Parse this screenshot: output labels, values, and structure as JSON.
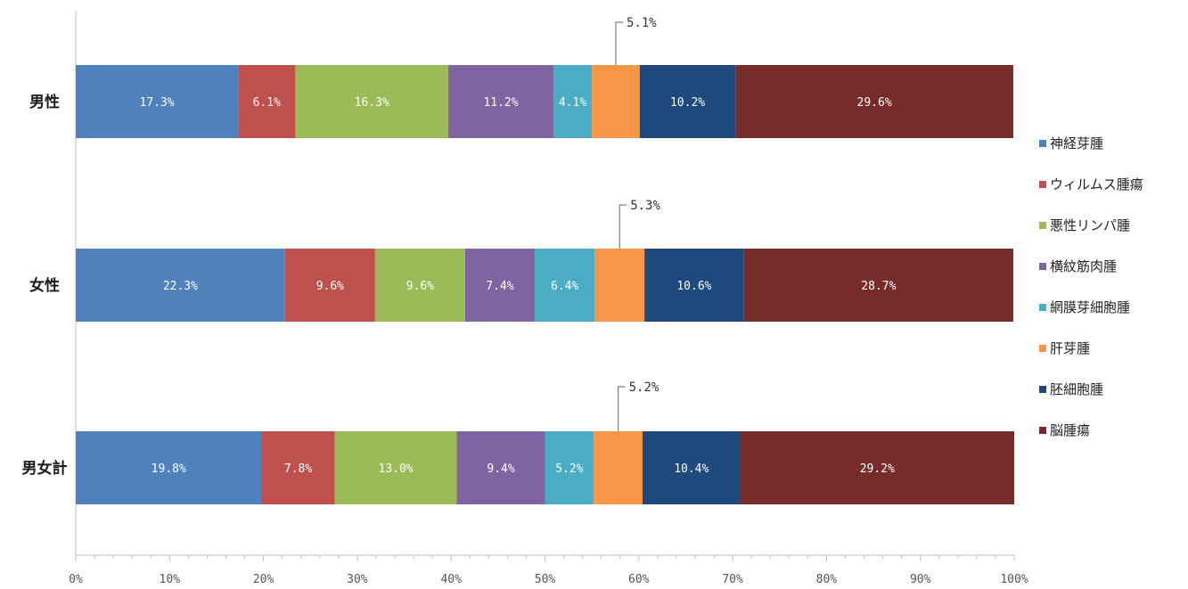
{
  "chart_data": {
    "type": "bar",
    "orientation": "horizontal",
    "stacked": "percent",
    "categories": [
      "男性",
      "女性",
      "男女計"
    ],
    "series": [
      {
        "name": "神経芽腫",
        "color": "#4f81bd",
        "values": [
          17.3,
          22.3,
          19.8
        ],
        "labels": [
          "17.3%",
          "22.3%",
          "19.8%"
        ]
      },
      {
        "name": "ウィルムス腫瘍",
        "color": "#c0504d",
        "values": [
          6.1,
          9.6,
          7.8
        ],
        "labels": [
          "6.1%",
          "9.6%",
          "7.8%"
        ]
      },
      {
        "name": "悪性リンパ腫",
        "color": "#9bbb59",
        "values": [
          16.3,
          9.6,
          13.0
        ],
        "labels": [
          "16.3%",
          "9.6%",
          "13.0%"
        ]
      },
      {
        "name": "横紋筋肉腫",
        "color": "#8064a2",
        "values": [
          11.2,
          7.4,
          9.4
        ],
        "labels": [
          "11.2%",
          "7.4%",
          "9.4%"
        ]
      },
      {
        "name": "網膜芽細胞腫",
        "color": "#4bacc6",
        "values": [
          4.1,
          6.4,
          5.2
        ],
        "labels": [
          "4.1%",
          "6.4%",
          "5.2%"
        ]
      },
      {
        "name": "肝芽腫",
        "color": "#f79646",
        "values": [
          5.1,
          5.3,
          5.2
        ],
        "labels": [
          "5.1%",
          "5.3%",
          "5.2%"
        ],
        "callout": true
      },
      {
        "name": "胚細胞腫",
        "color": "#1f497d",
        "values": [
          10.2,
          10.6,
          10.4
        ],
        "labels": [
          "10.2%",
          "10.6%",
          "10.4%"
        ]
      },
      {
        "name": "脳腫瘍",
        "color": "#772c2a",
        "values": [
          29.6,
          28.7,
          29.2
        ],
        "labels": [
          "29.6%",
          "28.7%",
          "29.2%"
        ]
      }
    ],
    "xlim": [
      0,
      100
    ],
    "x_ticks": [
      "0%",
      "10%",
      "20%",
      "30%",
      "40%",
      "50%",
      "60%",
      "70%",
      "80%",
      "90%",
      "100%"
    ],
    "legend_position": "right",
    "grid": false
  }
}
